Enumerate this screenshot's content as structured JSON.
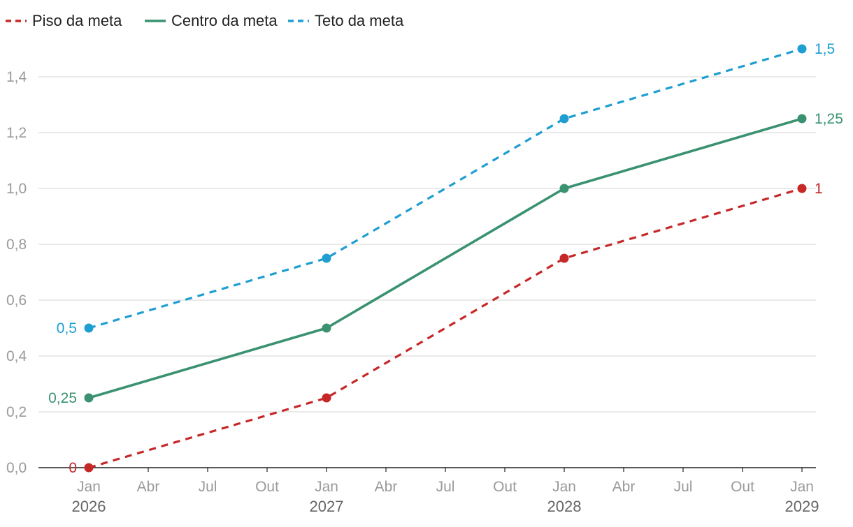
{
  "chart_data": {
    "type": "line",
    "title": "",
    "xlabel": "",
    "ylabel": "",
    "x": [
      "2026-01",
      "2027-01",
      "2028-01",
      "2029-01"
    ],
    "x_ticks": [
      {
        "month": "Jan",
        "year": "2026",
        "date": "2026-01"
      },
      {
        "month": "Abr",
        "year": "",
        "date": "2026-04"
      },
      {
        "month": "Jul",
        "year": "",
        "date": "2026-07"
      },
      {
        "month": "Out",
        "year": "",
        "date": "2026-10"
      },
      {
        "month": "Jan",
        "year": "2027",
        "date": "2027-01"
      },
      {
        "month": "Abr",
        "year": "",
        "date": "2027-04"
      },
      {
        "month": "Jul",
        "year": "",
        "date": "2027-07"
      },
      {
        "month": "Out",
        "year": "",
        "date": "2027-10"
      },
      {
        "month": "Jan",
        "year": "2028",
        "date": "2028-01"
      },
      {
        "month": "Abr",
        "year": "",
        "date": "2028-04"
      },
      {
        "month": "Jul",
        "year": "",
        "date": "2028-07"
      },
      {
        "month": "Out",
        "year": "",
        "date": "2028-10"
      },
      {
        "month": "Jan",
        "year": "2029",
        "date": "2029-01"
      }
    ],
    "xlim": [
      "2026-01",
      "2029-01"
    ],
    "ylim": [
      0,
      1.5
    ],
    "y_ticks": [
      0.0,
      0.2,
      0.4,
      0.6,
      0.8,
      1.0,
      1.2,
      1.4
    ],
    "y_tick_labels": [
      "0,0",
      "0,2",
      "0,4",
      "0,6",
      "0,8",
      "1,0",
      "1,2",
      "1,4"
    ],
    "grid": true,
    "legend_position": "top-left",
    "series": [
      {
        "name": "Piso da meta",
        "key": "piso",
        "color": "#c62828",
        "dashed": true,
        "values": [
          0,
          0.25,
          0.75,
          1
        ],
        "labels": [
          {
            "index": 0,
            "text": "0",
            "side": "left"
          },
          {
            "index": 3,
            "text": "1",
            "side": "right"
          }
        ]
      },
      {
        "name": "Centro da meta",
        "key": "centro",
        "color": "#3a9270",
        "dashed": false,
        "values": [
          0.25,
          0.5,
          1,
          1.25
        ],
        "labels": [
          {
            "index": 0,
            "text": "0,25",
            "side": "left"
          },
          {
            "index": 3,
            "text": "1,25",
            "side": "right"
          }
        ]
      },
      {
        "name": "Teto da meta",
        "key": "teto",
        "color": "#1f9ed1",
        "dashed": true,
        "values": [
          0.5,
          0.75,
          1.25,
          1.5
        ],
        "labels": [
          {
            "index": 0,
            "text": "0,5",
            "side": "left"
          },
          {
            "index": 3,
            "text": "1,5",
            "side": "right"
          }
        ]
      }
    ]
  }
}
